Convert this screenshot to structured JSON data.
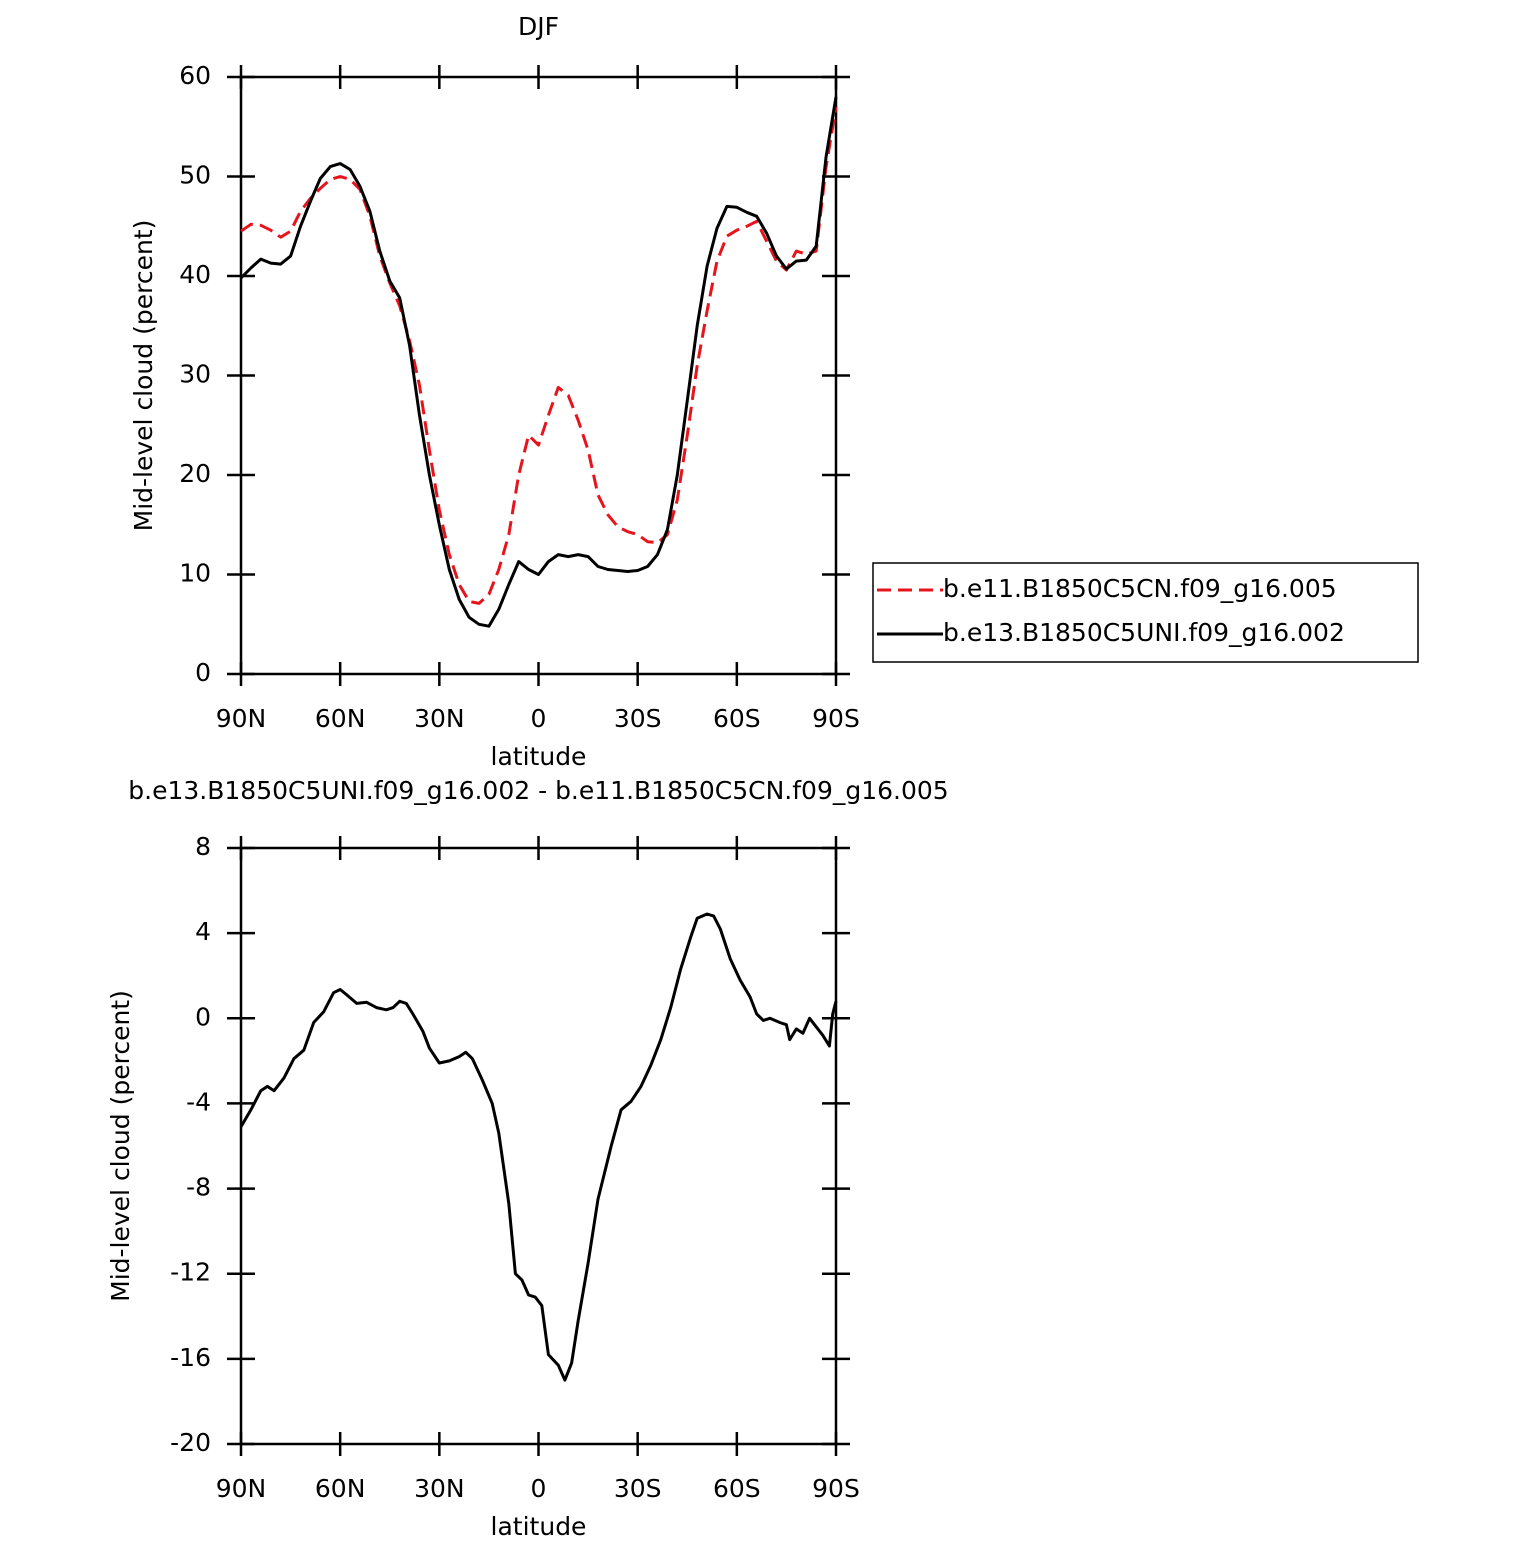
{
  "chart_data": [
    {
      "type": "line",
      "title": "DJF",
      "x_label": "latitude",
      "y_label": "Mid-level cloud (percent)",
      "x": [
        90,
        87,
        84,
        81,
        78,
        75,
        72,
        69,
        66,
        63,
        60,
        57,
        54,
        51,
        48,
        45,
        42,
        39,
        36,
        33,
        30,
        27,
        24,
        21,
        18,
        15,
        12,
        9,
        6,
        3,
        0,
        -3,
        -6,
        -9,
        -12,
        -15,
        -18,
        -21,
        -24,
        -27,
        -30,
        -33,
        -36,
        -39,
        -42,
        -45,
        -48,
        -51,
        -54,
        -57,
        -60,
        -63,
        -66,
        -69,
        -72,
        -75,
        -78,
        -81,
        -84,
        -87,
        -90
      ],
      "series": [
        {
          "name": "b.e11.B1850C5CN.f09_g16.005",
          "color": "#e8141c",
          "line_style": "dashed",
          "values": [
            44.5,
            45.2,
            45.1,
            44.6,
            43.9,
            44.5,
            46.5,
            47.8,
            48.8,
            49.7,
            50,
            49.7,
            48.7,
            46,
            42,
            39.3,
            37,
            33.5,
            29,
            22.5,
            16.5,
            12,
            9,
            7.3,
            7.1,
            8,
            10.5,
            14,
            20,
            24,
            23,
            26,
            28.8,
            28,
            25.5,
            22.5,
            18,
            16,
            14.8,
            14.3,
            14,
            13.3,
            13.2,
            14,
            17.5,
            24,
            31,
            36.5,
            41.5,
            44,
            44.6,
            45,
            45.5,
            43.5,
            41.5,
            40.6,
            42.5,
            42.2,
            42.5,
            51,
            57
          ]
        },
        {
          "name": "b.e13.B1850C5UNI.f09_g16.002",
          "color": "#000000",
          "line_style": "solid",
          "values": [
            39.8,
            40.8,
            41.7,
            41.3,
            41.2,
            42,
            45,
            47.5,
            49.8,
            51,
            51.3,
            50.7,
            49,
            46.5,
            42.5,
            39.5,
            37.8,
            33,
            26,
            20,
            15,
            10.5,
            7.5,
            5.7,
            5,
            4.8,
            6.5,
            9,
            11.3,
            10.5,
            10,
            11.3,
            12,
            11.8,
            12,
            11.8,
            10.8,
            10.5,
            10.4,
            10.3,
            10.4,
            10.8,
            12,
            14.5,
            20,
            27.5,
            35,
            41,
            44.8,
            47,
            46.9,
            46.4,
            46,
            44.3,
            42,
            40.7,
            41.5,
            41.6,
            43,
            52,
            58
          ]
        }
      ],
      "xlim": [
        90,
        -90
      ],
      "xticks": [
        {
          "value": 90,
          "label": "90N"
        },
        {
          "value": 60,
          "label": "60N"
        },
        {
          "value": 30,
          "label": "30N"
        },
        0,
        {
          "value": -30,
          "label": "30S"
        },
        {
          "value": -60,
          "label": "60S"
        },
        {
          "value": -90,
          "label": "90S"
        }
      ],
      "ylim": [
        0,
        60
      ],
      "yticks": [
        0,
        10,
        20,
        30,
        40,
        50,
        60
      ],
      "legend": "right"
    },
    {
      "type": "line",
      "title": "b.e13.B1850C5UNI.f09_g16.002 - b.e11.B1850C5CN.f09_g16.005",
      "x_label": "latitude",
      "y_label": "Mid-level cloud (percent)",
      "x": [
        90,
        87,
        84,
        82,
        80,
        77,
        74,
        71,
        68,
        65,
        62,
        60,
        58,
        55,
        52,
        49,
        46,
        44,
        42,
        40,
        38,
        35,
        33,
        30,
        27,
        24,
        22,
        20,
        17,
        14,
        12,
        9,
        7,
        5,
        3,
        1,
        -1,
        -3,
        -6,
        -8,
        -10,
        -12,
        -15,
        -18,
        -22,
        -25,
        -28,
        -31,
        -34,
        -37,
        -40,
        -43,
        -46,
        -48,
        -51,
        -53,
        -55,
        -58,
        -61,
        -64,
        -66,
        -68,
        -70,
        -73,
        -75,
        -76,
        -78,
        -80,
        -82,
        -84,
        -86,
        -88,
        -89,
        -90
      ],
      "values": [
        -5.1,
        -4.3,
        -3.4,
        -3.2,
        -3.4,
        -2.8,
        -1.9,
        -1.5,
        -0.2,
        0.3,
        1.2,
        1.35,
        1.1,
        0.7,
        0.75,
        0.5,
        0.4,
        0.5,
        0.8,
        0.7,
        0.2,
        -0.6,
        -1.4,
        -2.1,
        -2,
        -1.8,
        -1.6,
        -1.9,
        -2.9,
        -4,
        -5.4,
        -8.7,
        -12,
        -12.3,
        -13,
        -13.1,
        -13.5,
        -15.8,
        -16.3,
        -17,
        -16.2,
        -14.2,
        -11.5,
        -8.5,
        -6,
        -4.3,
        -3.9,
        -3.2,
        -2.2,
        -1,
        0.5,
        2.3,
        3.8,
        4.7,
        4.9,
        4.8,
        4.2,
        2.8,
        1.8,
        1,
        0.2,
        -0.1,
        0,
        -0.2,
        -0.3,
        -1,
        -0.5,
        -0.7,
        0,
        -0.4,
        -0.8,
        -1.3,
        0.2,
        0.8
      ],
      "color": "#000000",
      "xlim": [
        90,
        -90
      ],
      "xticks": [
        {
          "value": 90,
          "label": "90N"
        },
        {
          "value": 60,
          "label": "60N"
        },
        {
          "value": 30,
          "label": "30N"
        },
        0,
        {
          "value": -30,
          "label": "30S"
        },
        {
          "value": -60,
          "label": "60S"
        },
        {
          "value": -90,
          "label": "90S"
        }
      ],
      "ylim": [
        -20,
        8
      ],
      "yticks": [
        -20,
        -16,
        -12,
        -8,
        -4,
        0,
        4,
        8
      ]
    }
  ]
}
